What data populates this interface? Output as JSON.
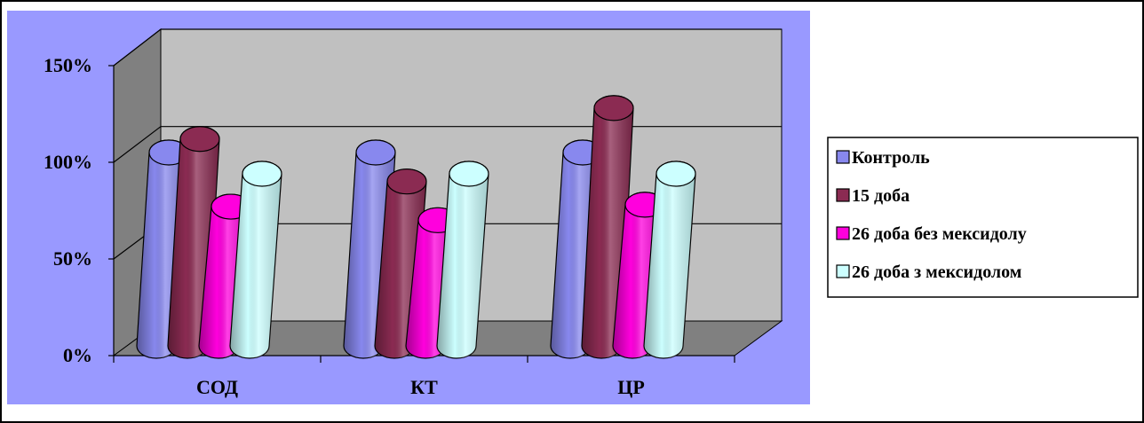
{
  "chart_data": {
    "type": "bar",
    "categories": [
      "СОД",
      "КТ",
      "ЦР"
    ],
    "series": [
      {
        "name": "Контроль",
        "values": [
          100,
          100,
          100
        ],
        "color": "#8888ee"
      },
      {
        "name": "15 доба",
        "values": [
          107,
          85,
          123
        ],
        "color": "#8b2b52"
      },
      {
        "name": "26 доба без мексидолу",
        "values": [
          72,
          65,
          73
        ],
        "color": "#ff00dd"
      },
      {
        "name": "26 доба з мексидолом",
        "values": [
          89,
          89,
          89
        ],
        "color": "#ccffff"
      }
    ],
    "yticks": [
      "0%",
      "50%",
      "100%",
      "150%"
    ],
    "ylim": [
      0,
      150
    ],
    "grid": true,
    "legend_position": "right",
    "plot_area_color": "#9999ff",
    "wall_color": "#c0c0c0",
    "floor_color": "#808080"
  }
}
